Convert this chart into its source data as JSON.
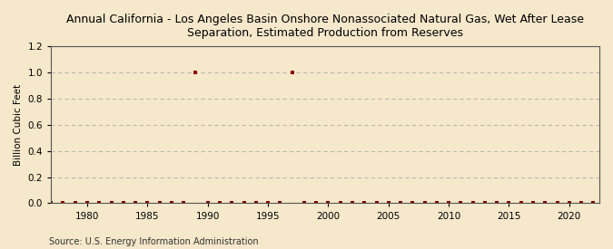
{
  "title": "Annual California - Los Angeles Basin Onshore Nonassociated Natural Gas, Wet After Lease\nSeparation, Estimated Production from Reserves",
  "ylabel": "Billion Cubic Feet",
  "source": "Source: U.S. Energy Information Administration",
  "background_color": "#f5e8cb",
  "plot_bg_color": "#f5e8cb",
  "marker_color": "#8b0000",
  "grid_color": "#aaaaaa",
  "xmin": 1977,
  "xmax": 2022.5,
  "ymin": 0.0,
  "ymax": 1.2,
  "yticks": [
    0.0,
    0.2,
    0.4,
    0.6,
    0.8,
    1.0,
    1.2
  ],
  "xticks": [
    1980,
    1985,
    1990,
    1995,
    2000,
    2005,
    2010,
    2015,
    2020
  ],
  "data_years": [
    1977,
    1978,
    1979,
    1980,
    1981,
    1982,
    1983,
    1984,
    1985,
    1986,
    1987,
    1988,
    1989,
    1990,
    1991,
    1992,
    1993,
    1994,
    1995,
    1996,
    1997,
    1998,
    1999,
    2000,
    2001,
    2002,
    2003,
    2004,
    2005,
    2006,
    2007,
    2008,
    2009,
    2010,
    2011,
    2012,
    2013,
    2014,
    2015,
    2016,
    2017,
    2018,
    2019,
    2020,
    2021,
    2022
  ],
  "data_values": [
    0.0,
    0.0,
    0.0,
    0.0,
    0.0,
    0.0,
    0.0,
    0.0,
    0.0,
    0.0,
    0.0,
    0.0,
    1.0,
    0.0,
    0.0,
    0.0,
    0.0,
    0.0,
    0.0,
    0.0,
    1.0,
    0.0,
    0.0,
    0.0,
    0.0,
    0.0,
    0.0,
    0.0,
    0.0,
    0.0,
    0.0,
    0.0,
    0.0,
    0.0,
    0.0,
    0.0,
    0.0,
    0.0,
    0.0,
    0.0,
    0.0,
    0.0,
    0.0,
    0.0,
    0.0,
    0.0
  ]
}
